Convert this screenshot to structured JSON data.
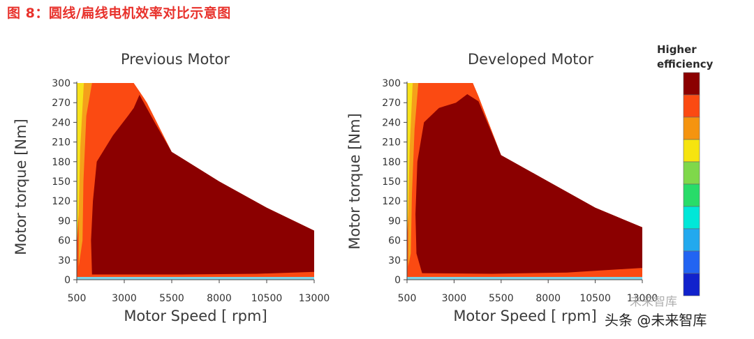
{
  "figure_title": "图 8：圆线/扁线电机效率对比示意图",
  "colors": {
    "title_red": "#e8322c",
    "best": "#8b0000",
    "band_orange_red": "#fb4a12",
    "band_orange": "#f5a01a",
    "band_yellow": "#f7e21a",
    "baseline": "#7fd3e8",
    "axis": "#444444"
  },
  "chart_data": [
    {
      "type": "heatmap",
      "title": "Previous Motor",
      "xlabel": "Motor Speed [ rpm]",
      "ylabel": "Motor torque [Nm]",
      "x_ticks": [
        "500",
        "3000",
        "5500",
        "8000",
        "10500",
        "13000"
      ],
      "y_ticks": [
        "0",
        "30",
        "60",
        "90",
        "120",
        "150",
        "180",
        "210",
        "240",
        "270",
        "300"
      ],
      "xlim": [
        500,
        13000
      ],
      "ylim": [
        0,
        300
      ],
      "envelope": [
        [
          500,
          300
        ],
        [
          3500,
          300
        ],
        [
          4200,
          270
        ],
        [
          5500,
          195
        ],
        [
          8000,
          150
        ],
        [
          10500,
          110
        ],
        [
          13000,
          75
        ],
        [
          13000,
          0
        ],
        [
          500,
          0
        ]
      ],
      "best_region": [
        [
          1300,
          8
        ],
        [
          1250,
          60
        ],
        [
          1350,
          120
        ],
        [
          1550,
          180
        ],
        [
          2400,
          220
        ],
        [
          3200,
          250
        ],
        [
          3500,
          262
        ],
        [
          3800,
          282
        ],
        [
          4600,
          240
        ],
        [
          5500,
          195
        ],
        [
          8000,
          150
        ],
        [
          10500,
          110
        ],
        [
          13000,
          75
        ],
        [
          13000,
          12
        ],
        [
          10000,
          9
        ],
        [
          6000,
          8
        ]
      ],
      "orange_region": [
        [
          800,
          6
        ],
        [
          750,
          120
        ],
        [
          900,
          240
        ],
        [
          1050,
          300
        ],
        [
          3500,
          300
        ],
        [
          4100,
          275
        ],
        [
          3300,
          245
        ],
        [
          2400,
          210
        ],
        [
          1600,
          170
        ],
        [
          1350,
          120
        ],
        [
          1300,
          40
        ],
        [
          1400,
          10
        ],
        [
          13000,
          10
        ],
        [
          13000,
          5
        ]
      ],
      "amber_region": [
        [
          600,
          300
        ],
        [
          1300,
          300
        ],
        [
          1000,
          250
        ],
        [
          850,
          150
        ],
        [
          800,
          60
        ],
        [
          600,
          20
        ]
      ],
      "yellow_region": [
        [
          500,
          300
        ],
        [
          870,
          300
        ],
        [
          680,
          200
        ],
        [
          600,
          100
        ],
        [
          520,
          60
        ],
        [
          500,
          60
        ]
      ]
    },
    {
      "type": "heatmap",
      "title": "Developed Motor",
      "xlabel": "Motor Speed [ rpm]",
      "ylabel": "Motor torque [Nm]",
      "x_ticks": [
        "500",
        "3000",
        "5500",
        "8000",
        "10500",
        "13000"
      ],
      "y_ticks": [
        "0",
        "30",
        "60",
        "90",
        "120",
        "150",
        "180",
        "210",
        "240",
        "270",
        "300"
      ],
      "xlim": [
        500,
        13000
      ],
      "ylim": [
        0,
        300
      ],
      "envelope": [
        [
          500,
          300
        ],
        [
          4000,
          300
        ],
        [
          4300,
          280
        ],
        [
          5500,
          190
        ],
        [
          8000,
          150
        ],
        [
          10500,
          110
        ],
        [
          13000,
          80
        ],
        [
          13000,
          0
        ],
        [
          500,
          0
        ]
      ],
      "best_region": [
        [
          1300,
          10
        ],
        [
          1000,
          40
        ],
        [
          950,
          100
        ],
        [
          1050,
          180
        ],
        [
          1400,
          240
        ],
        [
          2200,
          262
        ],
        [
          3100,
          270
        ],
        [
          3700,
          283
        ],
        [
          4300,
          272
        ],
        [
          5500,
          190
        ],
        [
          8000,
          150
        ],
        [
          10500,
          110
        ],
        [
          13000,
          80
        ],
        [
          13000,
          18
        ],
        [
          9000,
          11
        ],
        [
          5000,
          9
        ]
      ],
      "orange_region": [
        [
          700,
          6
        ],
        [
          650,
          80
        ],
        [
          700,
          200
        ],
        [
          800,
          300
        ],
        [
          4000,
          300
        ],
        [
          3500,
          272
        ],
        [
          2300,
          262
        ],
        [
          1400,
          240
        ],
        [
          1050,
          180
        ],
        [
          950,
          100
        ],
        [
          1000,
          40
        ],
        [
          1300,
          10
        ],
        [
          13000,
          13
        ],
        [
          13000,
          5
        ]
      ],
      "amber_region": [
        [
          560,
          300
        ],
        [
          1100,
          300
        ],
        [
          900,
          230
        ],
        [
          760,
          130
        ],
        [
          700,
          40
        ],
        [
          560,
          20
        ]
      ],
      "yellow_region": [
        [
          500,
          300
        ],
        [
          800,
          300
        ],
        [
          640,
          200
        ],
        [
          560,
          100
        ],
        [
          500,
          60
        ]
      ]
    }
  ],
  "legend": {
    "title_line1": "Higher",
    "title_line2": "efficiency",
    "colors": [
      "#8b0000",
      "#fb4a12",
      "#f5940f",
      "#f6e40f",
      "#7fd84a",
      "#28dc69",
      "#00e7d8",
      "#22a9ee",
      "#2264f2",
      "#1122cc"
    ]
  },
  "watermark": {
    "main": "头条 @未来智库",
    "faint": "未来智库"
  }
}
